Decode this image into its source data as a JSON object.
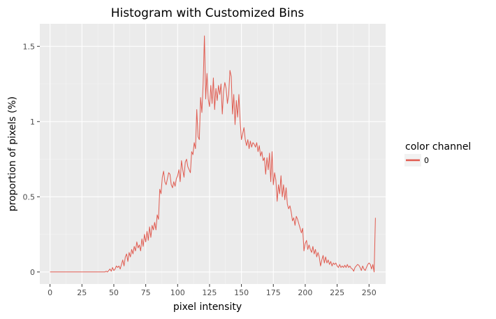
{
  "chart_data": {
    "type": "line",
    "title": "Histogram with Customized Bins",
    "xlabel": "pixel intensity",
    "ylabel": "proportion of pixels (%)",
    "xlim": [
      -8,
      263
    ],
    "ylim": [
      -0.08,
      1.65
    ],
    "x_ticks": [
      0,
      25,
      50,
      75,
      100,
      125,
      150,
      175,
      200,
      225,
      250
    ],
    "y_ticks": [
      0,
      0.5,
      1,
      1.5
    ],
    "y_tick_labels": [
      "0",
      "0.5",
      "1",
      "1.5"
    ],
    "grid": true,
    "legend": {
      "title": "color channel",
      "position": "right",
      "entries": [
        "0"
      ]
    },
    "series": [
      {
        "name": "0",
        "color": "#e05a4f",
        "points": [
          [
            0,
            0.0
          ],
          [
            43,
            0.0
          ],
          [
            44,
            0.005
          ],
          [
            45,
            0.0
          ],
          [
            46,
            0.01
          ],
          [
            47,
            0.02
          ],
          [
            48,
            0.005
          ],
          [
            49,
            0.03
          ],
          [
            50,
            0.01
          ],
          [
            51,
            0.02
          ],
          [
            52,
            0.04
          ],
          [
            53,
            0.03
          ],
          [
            54,
            0.04
          ],
          [
            55,
            0.02
          ],
          [
            56,
            0.05
          ],
          [
            57,
            0.08
          ],
          [
            58,
            0.04
          ],
          [
            59,
            0.1
          ],
          [
            60,
            0.12
          ],
          [
            61,
            0.07
          ],
          [
            62,
            0.13
          ],
          [
            63,
            0.1
          ],
          [
            64,
            0.15
          ],
          [
            65,
            0.12
          ],
          [
            66,
            0.17
          ],
          [
            67,
            0.14
          ],
          [
            68,
            0.2
          ],
          [
            69,
            0.16
          ],
          [
            70,
            0.18
          ],
          [
            71,
            0.14
          ],
          [
            72,
            0.22
          ],
          [
            73,
            0.17
          ],
          [
            74,
            0.25
          ],
          [
            75,
            0.2
          ],
          [
            76,
            0.27
          ],
          [
            77,
            0.21
          ],
          [
            78,
            0.3
          ],
          [
            79,
            0.23
          ],
          [
            80,
            0.31
          ],
          [
            81,
            0.28
          ],
          [
            82,
            0.33
          ],
          [
            83,
            0.28
          ],
          [
            84,
            0.38
          ],
          [
            85,
            0.35
          ],
          [
            86,
            0.55
          ],
          [
            87,
            0.52
          ],
          [
            88,
            0.63
          ],
          [
            89,
            0.67
          ],
          [
            90,
            0.6
          ],
          [
            91,
            0.58
          ],
          [
            92,
            0.62
          ],
          [
            93,
            0.66
          ],
          [
            94,
            0.65
          ],
          [
            95,
            0.58
          ],
          [
            96,
            0.56
          ],
          [
            97,
            0.6
          ],
          [
            98,
            0.57
          ],
          [
            99,
            0.62
          ],
          [
            100,
            0.64
          ],
          [
            101,
            0.68
          ],
          [
            102,
            0.6
          ],
          [
            103,
            0.74
          ],
          [
            104,
            0.68
          ],
          [
            105,
            0.63
          ],
          [
            106,
            0.73
          ],
          [
            107,
            0.75
          ],
          [
            108,
            0.7
          ],
          [
            109,
            0.68
          ],
          [
            110,
            0.66
          ],
          [
            111,
            0.8
          ],
          [
            112,
            0.78
          ],
          [
            113,
            0.86
          ],
          [
            114,
            0.82
          ],
          [
            115,
            1.08
          ],
          [
            116,
            0.9
          ],
          [
            117,
            0.88
          ],
          [
            118,
            1.16
          ],
          [
            119,
            1.06
          ],
          [
            120,
            1.25
          ],
          [
            121,
            1.57
          ],
          [
            122,
            1.15
          ],
          [
            123,
            1.32
          ],
          [
            124,
            1.15
          ],
          [
            125,
            1.1
          ],
          [
            126,
            1.24
          ],
          [
            127,
            1.12
          ],
          [
            128,
            1.29
          ],
          [
            129,
            1.08
          ],
          [
            130,
            1.22
          ],
          [
            131,
            1.14
          ],
          [
            132,
            1.24
          ],
          [
            133,
            1.18
          ],
          [
            134,
            1.25
          ],
          [
            135,
            1.05
          ],
          [
            136,
            1.2
          ],
          [
            137,
            1.26
          ],
          [
            138,
            1.22
          ],
          [
            139,
            1.12
          ],
          [
            140,
            1.18
          ],
          [
            141,
            1.34
          ],
          [
            142,
            1.3
          ],
          [
            143,
            1.05
          ],
          [
            144,
            1.18
          ],
          [
            145,
            0.98
          ],
          [
            146,
            1.14
          ],
          [
            147,
            1.03
          ],
          [
            148,
            1.18
          ],
          [
            149,
            1.0
          ],
          [
            150,
            0.88
          ],
          [
            151,
            0.92
          ],
          [
            152,
            0.96
          ],
          [
            153,
            0.88
          ],
          [
            154,
            0.84
          ],
          [
            155,
            0.88
          ],
          [
            156,
            0.82
          ],
          [
            157,
            0.87
          ],
          [
            158,
            0.83
          ],
          [
            159,
            0.86
          ],
          [
            160,
            0.85
          ],
          [
            161,
            0.83
          ],
          [
            162,
            0.86
          ],
          [
            163,
            0.8
          ],
          [
            164,
            0.84
          ],
          [
            165,
            0.77
          ],
          [
            166,
            0.8
          ],
          [
            167,
            0.74
          ],
          [
            168,
            0.76
          ],
          [
            169,
            0.65
          ],
          [
            170,
            0.76
          ],
          [
            171,
            0.68
          ],
          [
            172,
            0.79
          ],
          [
            173,
            0.6
          ],
          [
            174,
            0.8
          ],
          [
            175,
            0.58
          ],
          [
            176,
            0.66
          ],
          [
            177,
            0.61
          ],
          [
            178,
            0.47
          ],
          [
            179,
            0.58
          ],
          [
            180,
            0.52
          ],
          [
            181,
            0.64
          ],
          [
            182,
            0.5
          ],
          [
            183,
            0.58
          ],
          [
            184,
            0.48
          ],
          [
            185,
            0.56
          ],
          [
            186,
            0.45
          ],
          [
            187,
            0.42
          ],
          [
            188,
            0.44
          ],
          [
            189,
            0.4
          ],
          [
            190,
            0.34
          ],
          [
            191,
            0.36
          ],
          [
            192,
            0.31
          ],
          [
            193,
            0.37
          ],
          [
            194,
            0.35
          ],
          [
            195,
            0.32
          ],
          [
            196,
            0.29
          ],
          [
            197,
            0.26
          ],
          [
            198,
            0.29
          ],
          [
            199,
            0.14
          ],
          [
            200,
            0.19
          ],
          [
            201,
            0.21
          ],
          [
            202,
            0.15
          ],
          [
            203,
            0.18
          ],
          [
            204,
            0.15
          ],
          [
            205,
            0.13
          ],
          [
            206,
            0.17
          ],
          [
            207,
            0.12
          ],
          [
            208,
            0.15
          ],
          [
            209,
            0.1
          ],
          [
            210,
            0.13
          ],
          [
            211,
            0.1
          ],
          [
            212,
            0.04
          ],
          [
            213,
            0.08
          ],
          [
            214,
            0.11
          ],
          [
            215,
            0.06
          ],
          [
            216,
            0.1
          ],
          [
            217,
            0.06
          ],
          [
            218,
            0.08
          ],
          [
            219,
            0.05
          ],
          [
            220,
            0.07
          ],
          [
            221,
            0.04
          ],
          [
            222,
            0.06
          ],
          [
            223,
            0.05
          ],
          [
            224,
            0.06
          ],
          [
            225,
            0.04
          ],
          [
            226,
            0.03
          ],
          [
            227,
            0.05
          ],
          [
            228,
            0.03
          ],
          [
            229,
            0.04
          ],
          [
            230,
            0.03
          ],
          [
            231,
            0.045
          ],
          [
            232,
            0.03
          ],
          [
            233,
            0.05
          ],
          [
            234,
            0.03
          ],
          [
            235,
            0.04
          ],
          [
            236,
            0.025
          ],
          [
            237,
            0.02
          ],
          [
            238,
            0.005
          ],
          [
            239,
            0.03
          ],
          [
            240,
            0.04
          ],
          [
            241,
            0.05
          ],
          [
            242,
            0.045
          ],
          [
            243,
            0.03
          ],
          [
            244,
            0.01
          ],
          [
            245,
            0.04
          ],
          [
            246,
            0.02
          ],
          [
            247,
            0.01
          ],
          [
            248,
            0.03
          ],
          [
            249,
            0.05
          ],
          [
            250,
            0.06
          ],
          [
            251,
            0.05
          ],
          [
            252,
            0.02
          ],
          [
            253,
            0.05
          ],
          [
            254,
            0.0
          ],
          [
            255,
            0.36
          ]
        ]
      }
    ]
  },
  "colors": {
    "panel": "#ebebeb",
    "grid_major": "#ffffff",
    "grid_minor": "#f4f4f4",
    "line": "#e05a4f"
  }
}
